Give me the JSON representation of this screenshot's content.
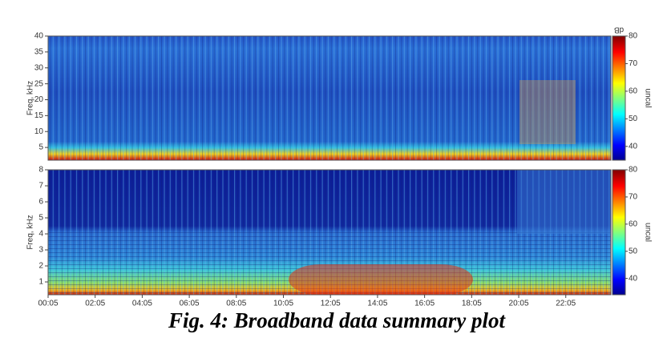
{
  "chart_data": [
    {
      "type": "heatmap",
      "ylabel": "Freq, kHz",
      "ylim": [
        1,
        40
      ],
      "yticks": [
        5,
        10,
        15,
        20,
        25,
        30,
        35,
        40
      ],
      "clim": [
        35,
        80
      ],
      "cticks": [
        40,
        50,
        60,
        70,
        80
      ],
      "colorbar_label": "uncal",
      "colorbar_title": "dB"
    },
    {
      "type": "heatmap",
      "ylabel": "Freq, kHz",
      "ylim": [
        0.2,
        8
      ],
      "yticks": [
        1,
        2,
        3,
        4,
        5,
        6,
        7,
        8
      ],
      "clim": [
        34,
        80
      ],
      "cticks": [
        40,
        50,
        60,
        70,
        80
      ],
      "colorbar_label": "uncal",
      "xlim": [
        5,
        1440
      ],
      "xticks": [
        {
          "value": 5,
          "label": "00:05"
        },
        {
          "value": 125,
          "label": "02:05"
        },
        {
          "value": 245,
          "label": "04:05"
        },
        {
          "value": 365,
          "label": "06:05"
        },
        {
          "value": 485,
          "label": "08:05"
        },
        {
          "value": 605,
          "label": "10:05"
        },
        {
          "value": 725,
          "label": "12:05"
        },
        {
          "value": 845,
          "label": "14:05"
        },
        {
          "value": 965,
          "label": "16:05"
        },
        {
          "value": 1085,
          "label": "18:05"
        },
        {
          "value": 1205,
          "label": "20:05"
        },
        {
          "value": 1325,
          "label": "22:05"
        }
      ]
    }
  ],
  "caption": "Fig. 4: Broadband data summary plot"
}
